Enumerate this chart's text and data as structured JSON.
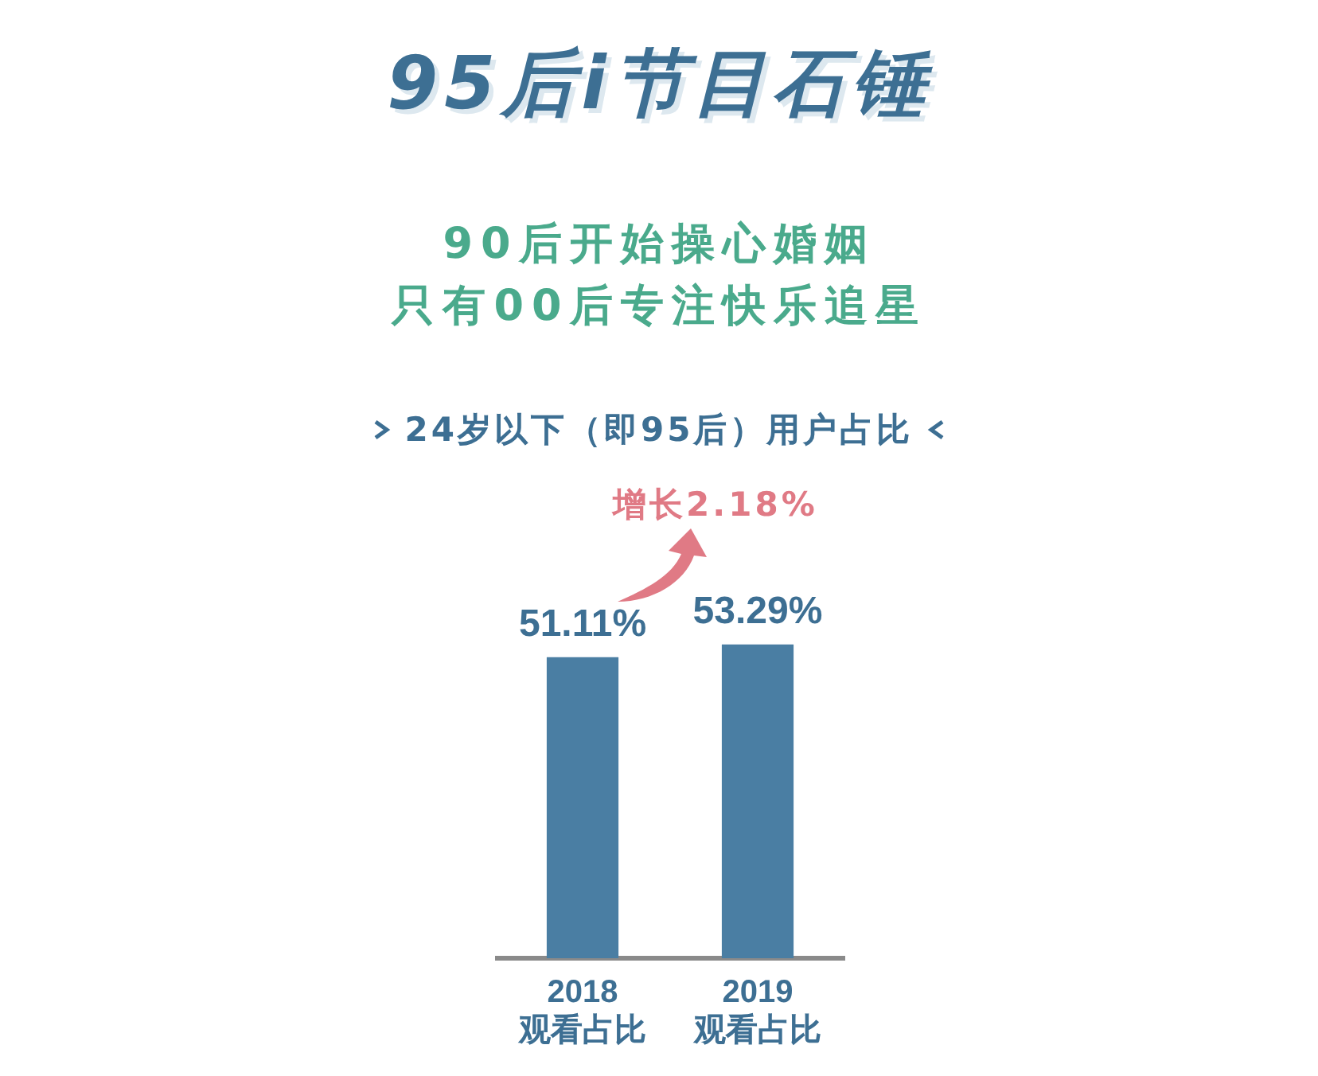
{
  "chart_data": {
    "type": "bar",
    "title": "95后i节目石锤",
    "subtitle": "90后开始操心婚姻",
    "annotations": [
      "只有00后专注快乐追星",
      "24岁以下（即95后）用户占比",
      "增长2.18%"
    ],
    "categories": [
      "2018\n观看占比",
      "2019\n观看占比"
    ],
    "values": [
      51.11,
      53.29
    ],
    "value_labels": [
      "51.11%",
      "53.29%"
    ],
    "color": "#4a7ea3",
    "tick_labels": "x",
    "grid": false,
    "legend": false
  }
}
